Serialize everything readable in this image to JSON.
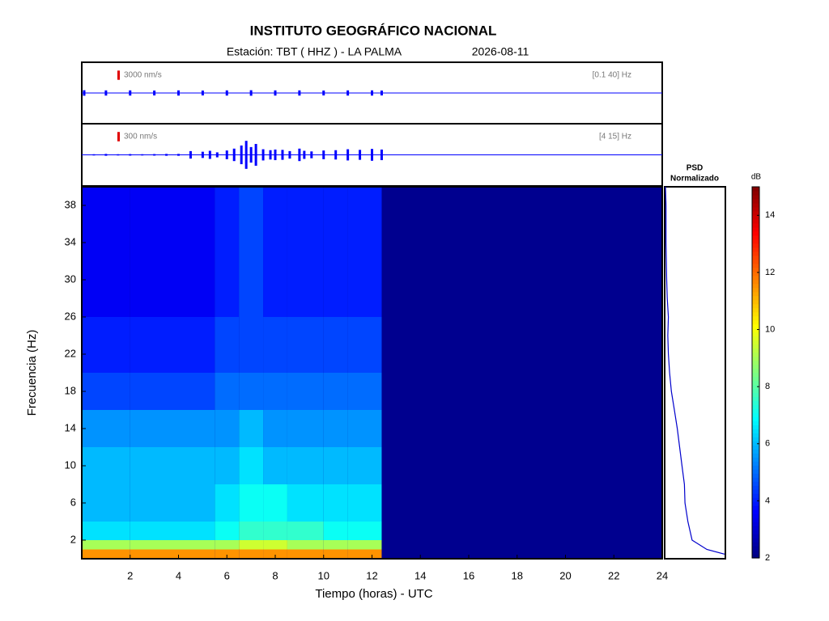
{
  "header": {
    "title": "INSTITUTO GEOGRÁFICO NACIONAL",
    "subtitle": "Estación:  TBT ( HHZ ) - LA PALMA",
    "date": "2026-08-11"
  },
  "chart_data": [
    {
      "type": "trace",
      "scale": {
        "value": 3000,
        "label": "3000 nm/s"
      },
      "band": "[0.1 40] Hz",
      "color": "#0000ff",
      "xlim": [
        0,
        24
      ],
      "ylim": [
        -10000,
        10000
      ],
      "x": [
        0.1,
        1,
        2,
        3,
        4,
        5,
        6,
        7,
        8,
        9,
        10,
        11,
        12,
        12.4
      ],
      "values": [
        900,
        850,
        850,
        800,
        850,
        800,
        850,
        900,
        850,
        850,
        800,
        850,
        850,
        800
      ]
    },
    {
      "type": "trace",
      "scale": {
        "value": 300,
        "label": "300 nm/s"
      },
      "band": "[4 15] Hz",
      "color": "#0000ff",
      "xlim": [
        0,
        24
      ],
      "ylim": [
        -1000,
        1000
      ],
      "x": [
        0.5,
        1,
        1.5,
        2,
        2.5,
        3,
        3.5,
        4,
        4.5,
        5,
        5.3,
        5.6,
        6,
        6.3,
        6.6,
        6.8,
        7,
        7.2,
        7.5,
        7.8,
        8,
        8.3,
        8.6,
        9,
        9.2,
        9.5,
        10,
        10.5,
        11,
        11.5,
        12,
        12.4
      ],
      "values": [
        20,
        30,
        20,
        25,
        20,
        25,
        30,
        30,
        120,
        100,
        130,
        80,
        140,
        200,
        300,
        450,
        250,
        350,
        180,
        150,
        170,
        160,
        120,
        200,
        130,
        110,
        140,
        150,
        180,
        160,
        190,
        170
      ]
    },
    {
      "type": "heatmap",
      "xlabel": "Tiempo (horas) - UTC",
      "ylabel": "Frecuencia  (Hz)",
      "xlim": [
        0,
        24
      ],
      "ylim": [
        0,
        40
      ],
      "xticks": [
        2,
        4,
        6,
        8,
        10,
        12,
        14,
        16,
        18,
        20,
        22,
        24
      ],
      "yticks": [
        2,
        6,
        10,
        14,
        18,
        22,
        26,
        30,
        34,
        38
      ],
      "x_edges": [
        0,
        2,
        4,
        5.5,
        6.5,
        7.5,
        8.5,
        10,
        11,
        12.4
      ],
      "y_edges": [
        0,
        1,
        2,
        4,
        8,
        12,
        16,
        20,
        26,
        32,
        40
      ],
      "z": [
        [
          11.5,
          11.5,
          11.5,
          11.5,
          11.5,
          11.5,
          11.5,
          11.5,
          11.5
        ],
        [
          9,
          9,
          9,
          9,
          9.5,
          9.5,
          9,
          9,
          9
        ],
        [
          6.5,
          6.5,
          6.5,
          7,
          7.5,
          7.5,
          7.5,
          7,
          7
        ],
        [
          6,
          6,
          6,
          6.5,
          7,
          7,
          6.5,
          6.5,
          6.5
        ],
        [
          6,
          6,
          6,
          6,
          6.5,
          6,
          6,
          6,
          6
        ],
        [
          5.5,
          5.5,
          5.5,
          5.5,
          6,
          5.5,
          5.5,
          5.5,
          5.5
        ],
        [
          4.5,
          4.5,
          4.5,
          5,
          5,
          5,
          5,
          5,
          5
        ],
        [
          4,
          4,
          4,
          4.5,
          4.5,
          4.5,
          4.5,
          4.5,
          4.5
        ],
        [
          3.5,
          3.5,
          3.5,
          4,
          4.5,
          4,
          4,
          4,
          4
        ],
        [
          3.5,
          3.5,
          3.5,
          4,
          4.5,
          4,
          4,
          4,
          4
        ]
      ],
      "colorbar": {
        "label": "dB",
        "lim": [
          2,
          15
        ],
        "ticks": [
          2,
          4,
          6,
          8,
          10,
          12,
          14
        ]
      }
    },
    {
      "type": "psd",
      "title": [
        "PSD",
        "Normalizado"
      ],
      "color": "#0000cc",
      "xlim": [
        0,
        1
      ],
      "ylim": [
        0,
        40
      ],
      "y": [
        0.5,
        1,
        2,
        4,
        6,
        8,
        10,
        12,
        14,
        16,
        18,
        20,
        22,
        24,
        26,
        28,
        30,
        34,
        38,
        40
      ],
      "values": [
        1.0,
        0.7,
        0.45,
        0.38,
        0.33,
        0.32,
        0.28,
        0.24,
        0.2,
        0.15,
        0.1,
        0.07,
        0.05,
        0.04,
        0.05,
        0.03,
        0.02,
        0.01,
        0.01,
        0
      ]
    }
  ]
}
